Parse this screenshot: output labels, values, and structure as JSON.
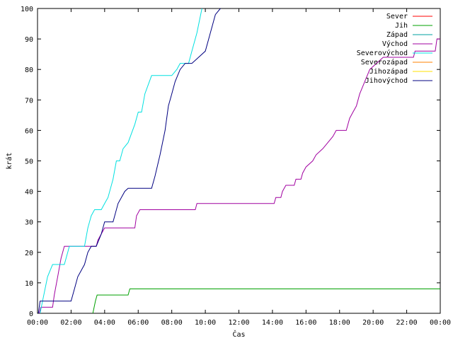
{
  "chart_data": {
    "type": "line",
    "title": "",
    "xlabel": "Čas",
    "ylabel": "krát",
    "xlim": [
      0,
      24
    ],
    "ylim": [
      0,
      100
    ],
    "x_ticks": [
      {
        "x": 0,
        "label": "00:00"
      },
      {
        "x": 2,
        "label": "02:00"
      },
      {
        "x": 4,
        "label": "04:00"
      },
      {
        "x": 6,
        "label": "06:00"
      },
      {
        "x": 8,
        "label": "08:00"
      },
      {
        "x": 10,
        "label": "10:00"
      },
      {
        "x": 12,
        "label": "12:00"
      },
      {
        "x": 14,
        "label": "14:00"
      },
      {
        "x": 16,
        "label": "16:00"
      },
      {
        "x": 18,
        "label": "18:00"
      },
      {
        "x": 20,
        "label": "20:00"
      },
      {
        "x": 22,
        "label": "22:00"
      },
      {
        "x": 24,
        "label": "00:00"
      }
    ],
    "y_ticks": [
      0,
      10,
      20,
      30,
      40,
      50,
      60,
      70,
      80,
      90,
      100
    ],
    "grid": false,
    "legend": "top-right",
    "series": [
      {
        "name": "Sever",
        "color": "#ff0000",
        "points": []
      },
      {
        "name": "Jih",
        "color": "#00a000",
        "points": [
          [
            3.3,
            0
          ],
          [
            3.45,
            4
          ],
          [
            3.55,
            6
          ],
          [
            5.4,
            6
          ],
          [
            5.5,
            8
          ],
          [
            24,
            8
          ]
        ]
      },
      {
        "name": "Západ",
        "color": "#00a0a0",
        "points": []
      },
      {
        "name": "Východ",
        "color": "#a000a0",
        "points": [
          [
            0.1,
            0
          ],
          [
            0.2,
            2
          ],
          [
            0.9,
            2
          ],
          [
            1.0,
            6
          ],
          [
            1.2,
            12
          ],
          [
            1.4,
            18
          ],
          [
            1.6,
            22
          ],
          [
            2.4,
            22
          ],
          [
            2.6,
            22
          ],
          [
            3.5,
            22
          ],
          [
            3.6,
            24
          ],
          [
            3.8,
            26
          ],
          [
            4.0,
            28
          ],
          [
            5.8,
            28
          ],
          [
            5.9,
            32
          ],
          [
            6.1,
            34
          ],
          [
            9.4,
            34
          ],
          [
            9.5,
            36
          ],
          [
            14.1,
            36
          ],
          [
            14.2,
            38
          ],
          [
            14.5,
            38
          ],
          [
            14.6,
            40
          ],
          [
            14.8,
            42
          ],
          [
            15.3,
            42
          ],
          [
            15.4,
            44
          ],
          [
            15.7,
            44
          ],
          [
            15.8,
            46
          ],
          [
            16.0,
            48
          ],
          [
            16.4,
            50
          ],
          [
            16.6,
            52
          ],
          [
            17.0,
            54
          ],
          [
            17.3,
            56
          ],
          [
            17.6,
            58
          ],
          [
            17.8,
            60
          ],
          [
            18.4,
            60
          ],
          [
            18.6,
            64
          ],
          [
            18.8,
            66
          ],
          [
            19.0,
            68
          ],
          [
            19.2,
            72
          ],
          [
            19.5,
            76
          ],
          [
            19.8,
            80
          ],
          [
            20.2,
            82
          ],
          [
            20.6,
            84
          ],
          [
            21.0,
            84
          ],
          [
            22.4,
            84
          ],
          [
            22.5,
            86
          ],
          [
            23.7,
            86
          ],
          [
            23.8,
            90
          ],
          [
            24,
            90
          ]
        ]
      },
      {
        "name": "Severovýchod",
        "color": "#00e0e0",
        "points": [
          [
            0.15,
            0
          ],
          [
            0.3,
            4
          ],
          [
            0.6,
            12
          ],
          [
            0.9,
            16
          ],
          [
            1.6,
            16
          ],
          [
            1.8,
            20
          ],
          [
            1.9,
            22
          ],
          [
            2.8,
            22
          ],
          [
            3.0,
            28
          ],
          [
            3.2,
            32
          ],
          [
            3.4,
            34
          ],
          [
            3.8,
            34
          ],
          [
            4.0,
            36
          ],
          [
            4.2,
            38
          ],
          [
            4.5,
            44
          ],
          [
            4.7,
            50
          ],
          [
            4.9,
            50
          ],
          [
            5.1,
            54
          ],
          [
            5.4,
            56
          ],
          [
            5.8,
            62
          ],
          [
            6.0,
            66
          ],
          [
            6.2,
            66
          ],
          [
            6.4,
            72
          ],
          [
            6.8,
            78
          ],
          [
            7.6,
            78
          ],
          [
            8.0,
            78
          ],
          [
            8.3,
            80
          ],
          [
            8.5,
            82
          ],
          [
            9.0,
            82
          ],
          [
            9.2,
            86
          ],
          [
            9.5,
            92
          ],
          [
            9.8,
            100
          ]
        ]
      },
      {
        "name": "Severozápad",
        "color": "#ff8000",
        "points": []
      },
      {
        "name": "Jihozápad",
        "color": "#ffe000",
        "points": []
      },
      {
        "name": "Jihovýchod",
        "color": "#000080",
        "points": [
          [
            0.05,
            0
          ],
          [
            0.15,
            4
          ],
          [
            2.0,
            4
          ],
          [
            2.2,
            8
          ],
          [
            2.4,
            12
          ],
          [
            2.6,
            14
          ],
          [
            2.8,
            16
          ],
          [
            3.0,
            20
          ],
          [
            3.2,
            22
          ],
          [
            3.5,
            22
          ],
          [
            3.8,
            26
          ],
          [
            4.0,
            30
          ],
          [
            4.5,
            30
          ],
          [
            4.8,
            36
          ],
          [
            5.0,
            38
          ],
          [
            5.2,
            40
          ],
          [
            5.4,
            41
          ],
          [
            6.8,
            41
          ],
          [
            7.0,
            45
          ],
          [
            7.3,
            52
          ],
          [
            7.6,
            60
          ],
          [
            7.8,
            68
          ],
          [
            8.0,
            72
          ],
          [
            8.2,
            76
          ],
          [
            8.5,
            80
          ],
          [
            8.8,
            82
          ],
          [
            9.2,
            82
          ],
          [
            9.6,
            84
          ],
          [
            10.0,
            86
          ],
          [
            10.3,
            92
          ],
          [
            10.6,
            98
          ],
          [
            10.9,
            100
          ]
        ]
      }
    ]
  }
}
